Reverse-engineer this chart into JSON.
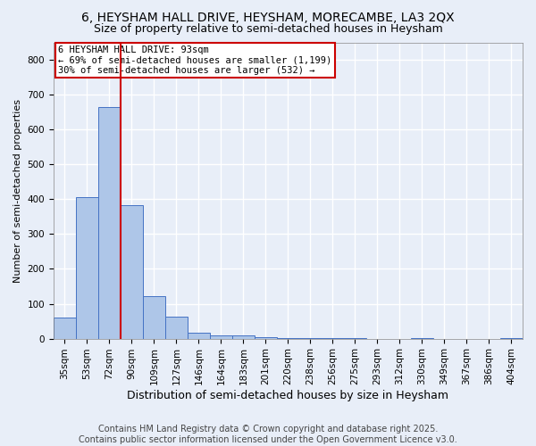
{
  "title1": "6, HEYSHAM HALL DRIVE, HEYSHAM, MORECAMBE, LA3 2QX",
  "title2": "Size of property relative to semi-detached houses in Heysham",
  "xlabel": "Distribution of semi-detached houses by size in Heysham",
  "ylabel": "Number of semi-detached properties",
  "categories": [
    "35sqm",
    "53sqm",
    "72sqm",
    "90sqm",
    "109sqm",
    "127sqm",
    "146sqm",
    "164sqm",
    "183sqm",
    "201sqm",
    "220sqm",
    "238sqm",
    "256sqm",
    "275sqm",
    "293sqm",
    "312sqm",
    "330sqm",
    "349sqm",
    "367sqm",
    "386sqm",
    "404sqm"
  ],
  "values": [
    60,
    407,
    665,
    383,
    122,
    63,
    18,
    8,
    8,
    3,
    2,
    1,
    1,
    1,
    0,
    0,
    1,
    0,
    0,
    0,
    1
  ],
  "bar_color": "#aec6e8",
  "bar_edge_color": "#4472c4",
  "vline_pos": 2.5,
  "annotation_title": "6 HEYSHAM HALL DRIVE: 93sqm",
  "annotation_line1": "← 69% of semi-detached houses are smaller (1,199)",
  "annotation_line2": "30% of semi-detached houses are larger (532) →",
  "annotation_box_color": "#ffffff",
  "annotation_box_edge": "#cc0000",
  "vline_color": "#cc0000",
  "ylim": [
    0,
    850
  ],
  "yticks": [
    0,
    100,
    200,
    300,
    400,
    500,
    600,
    700,
    800
  ],
  "footer1": "Contains HM Land Registry data © Crown copyright and database right 2025.",
  "footer2": "Contains public sector information licensed under the Open Government Licence v3.0.",
  "background_color": "#e8eef8",
  "plot_background": "#e8eef8",
  "grid_color": "#ffffff",
  "title_fontsize": 10,
  "subtitle_fontsize": 9,
  "ylabel_fontsize": 8,
  "xlabel_fontsize": 9,
  "tick_fontsize": 7.5,
  "annotation_fontsize": 7.5,
  "footer_fontsize": 7
}
